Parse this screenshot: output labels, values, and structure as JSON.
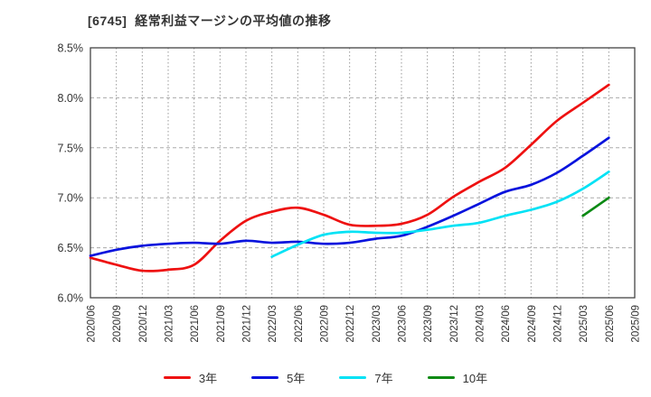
{
  "title": "[6745]  経常利益マージンの平均値の推移",
  "chart_data": {
    "type": "line",
    "title": "[6745]  経常利益マージンの平均値の推移",
    "xlabel": "",
    "ylabel": "",
    "ylim": [
      6.0,
      8.5
    ],
    "yticks": [
      "6.0%",
      "6.5%",
      "7.0%",
      "7.5%",
      "8.0%",
      "8.5%"
    ],
    "grid": true,
    "legend_position": "bottom",
    "categories": [
      "2020/06",
      "2020/09",
      "2020/12",
      "2021/03",
      "2021/06",
      "2021/09",
      "2021/12",
      "2022/03",
      "2022/06",
      "2022/09",
      "2022/12",
      "2023/03",
      "2023/06",
      "2023/09",
      "2023/12",
      "2024/03",
      "2024/06",
      "2024/09",
      "2024/12",
      "2025/03",
      "2025/06",
      "2025/09"
    ],
    "series": [
      {
        "name": "3年",
        "color": "#ee1111",
        "values": [
          6.4,
          6.33,
          6.27,
          6.28,
          6.33,
          6.57,
          6.77,
          6.86,
          6.9,
          6.83,
          6.73,
          6.72,
          6.74,
          6.83,
          7.01,
          7.16,
          7.3,
          7.53,
          7.77,
          7.95,
          8.13,
          null
        ]
      },
      {
        "name": "5年",
        "color": "#0813dd",
        "values": [
          6.42,
          6.48,
          6.52,
          6.54,
          6.55,
          6.54,
          6.57,
          6.55,
          6.56,
          6.54,
          6.55,
          6.59,
          6.62,
          6.71,
          6.82,
          6.94,
          7.06,
          7.13,
          7.25,
          7.42,
          7.6,
          null
        ]
      },
      {
        "name": "7年",
        "color": "#00e2f5",
        "values": [
          null,
          null,
          null,
          null,
          null,
          null,
          null,
          6.41,
          6.53,
          6.63,
          6.66,
          6.65,
          6.65,
          6.68,
          6.72,
          6.75,
          6.82,
          6.88,
          6.96,
          7.09,
          7.26,
          null
        ]
      },
      {
        "name": "10年",
        "color": "#0c8a14",
        "values": [
          null,
          null,
          null,
          null,
          null,
          null,
          null,
          null,
          null,
          null,
          null,
          null,
          null,
          null,
          null,
          null,
          null,
          null,
          null,
          6.82,
          7.0,
          null
        ]
      }
    ]
  },
  "style_colors": {
    "grid_vertical": "#999999",
    "grid_horizontal": "#aaaaaa",
    "frame": "#444444",
    "tick_text": "#333333",
    "title_text": "#333333"
  }
}
